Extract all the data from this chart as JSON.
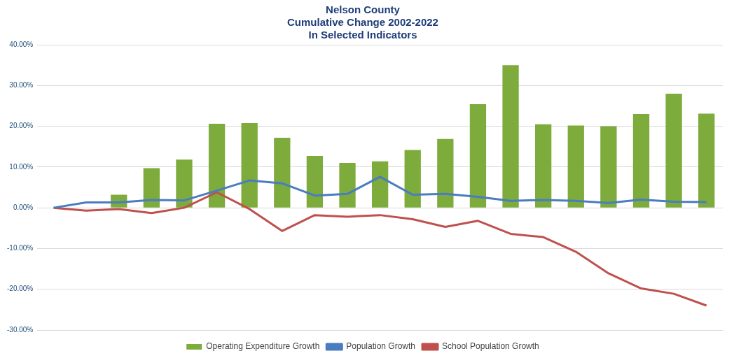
{
  "chart_data": {
    "type": "bar",
    "title": [
      "Nelson County",
      "Cumulative Change 2002-2022",
      "In Selected Indicators"
    ],
    "categories": [
      null,
      null,
      null,
      null,
      null,
      null,
      null,
      null,
      null,
      null,
      null,
      null,
      null,
      null,
      null,
      null,
      null,
      null,
      null,
      null,
      null
    ],
    "series": [
      {
        "name": "Operating Expenditure Growth",
        "color": "#7dab3c",
        "values": [
          0,
          0,
          3.2,
          9.7,
          11.8,
          20.6,
          20.8,
          17.2,
          12.7,
          11.0,
          11.4,
          14.2,
          16.9,
          25.4,
          35.0,
          20.5,
          20.2,
          20.0,
          23.0,
          28.0,
          23.1
        ]
      },
      {
        "name": "Population Growth",
        "type": "line",
        "color": "#4a7cc0",
        "values": [
          0,
          1.3,
          1.3,
          1.9,
          1.8,
          4.2,
          6.7,
          6.0,
          3.0,
          3.4,
          7.6,
          3.2,
          3.4,
          2.7,
          1.7,
          1.9,
          1.7,
          1.2,
          2.0,
          1.5,
          1.4
        ]
      },
      {
        "name": "School Population Growth",
        "type": "line",
        "color": "#c0504d",
        "values": [
          0,
          -0.7,
          -0.3,
          -1.3,
          0,
          3.8,
          -0.3,
          -5.7,
          -1.8,
          -2.2,
          -1.8,
          -2.8,
          -4.7,
          -3.2,
          -6.4,
          -7.2,
          -10.8,
          -16.1,
          -19.8,
          -21.1,
          -24.0
        ]
      }
    ],
    "ylim": [
      -30,
      40
    ],
    "yticks": [
      {
        "value": -30,
        "label": "-30.00%"
      },
      {
        "value": -20,
        "label": "-20.00%"
      },
      {
        "value": -10,
        "label": "-10.00%"
      },
      {
        "value": 0,
        "label": "0.00%"
      },
      {
        "value": 10,
        "label": "10.00%"
      },
      {
        "value": 20,
        "label": "20.00%"
      },
      {
        "value": 30,
        "label": "30.00%"
      },
      {
        "value": 40,
        "label": "40.00%"
      }
    ],
    "grid": "y",
    "legend": "bottom",
    "marker": "none",
    "line_style": "solid",
    "tick_labels": "y"
  }
}
